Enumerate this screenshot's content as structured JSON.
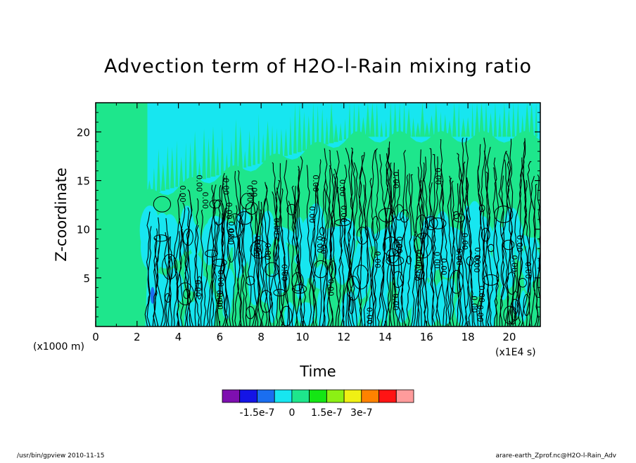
{
  "chart_data": {
    "type": "heatmap",
    "title": "Advection term of H2O-l-Rain mixing ratio",
    "xlabel": "Time",
    "ylabel": "Z-coordinate",
    "x_unit": "(x1E4 s)",
    "y_unit": "(x1000 m)",
    "xlim": [
      0,
      21.5
    ],
    "ylim": [
      0,
      23
    ],
    "x_ticks": [
      "0",
      "2",
      "4",
      "6",
      "8",
      "10",
      "12",
      "14",
      "16",
      "18",
      "20"
    ],
    "y_ticks": [
      "5",
      "10",
      "15",
      "20"
    ],
    "x_tick_values": [
      0,
      2,
      4,
      6,
      8,
      10,
      12,
      14,
      16,
      18,
      20
    ],
    "y_tick_values": [
      5,
      10,
      15,
      20
    ],
    "contour_label": "0.00",
    "colorbar": {
      "levels": [
        -2.25e-07,
        -1.5e-07,
        -7.5e-08,
        0,
        7.5e-08,
        1.5e-07,
        2.25e-07,
        3e-07
      ],
      "colors": [
        "#7e0fb0",
        "#1414e6",
        "#1a6ef0",
        "#17e6f0",
        "#1ee68c",
        "#14e614",
        "#8cf014",
        "#f0f014",
        "#ff8200",
        "#ff1414",
        "#ff9b9b"
      ],
      "tick_labels": [
        "-1.5e-7",
        "0",
        "1.5e-7",
        "3e-7"
      ]
    },
    "regions": {
      "background": "#1ee68c",
      "upper_band": "#17e6f0",
      "negative_patch": "#1a6ef0"
    }
  },
  "footer": {
    "left": "/usr/bin/gpview   2010-11-15",
    "right": "arare-earth_Zprof.nc@H2O-l-Rain_Adv"
  }
}
